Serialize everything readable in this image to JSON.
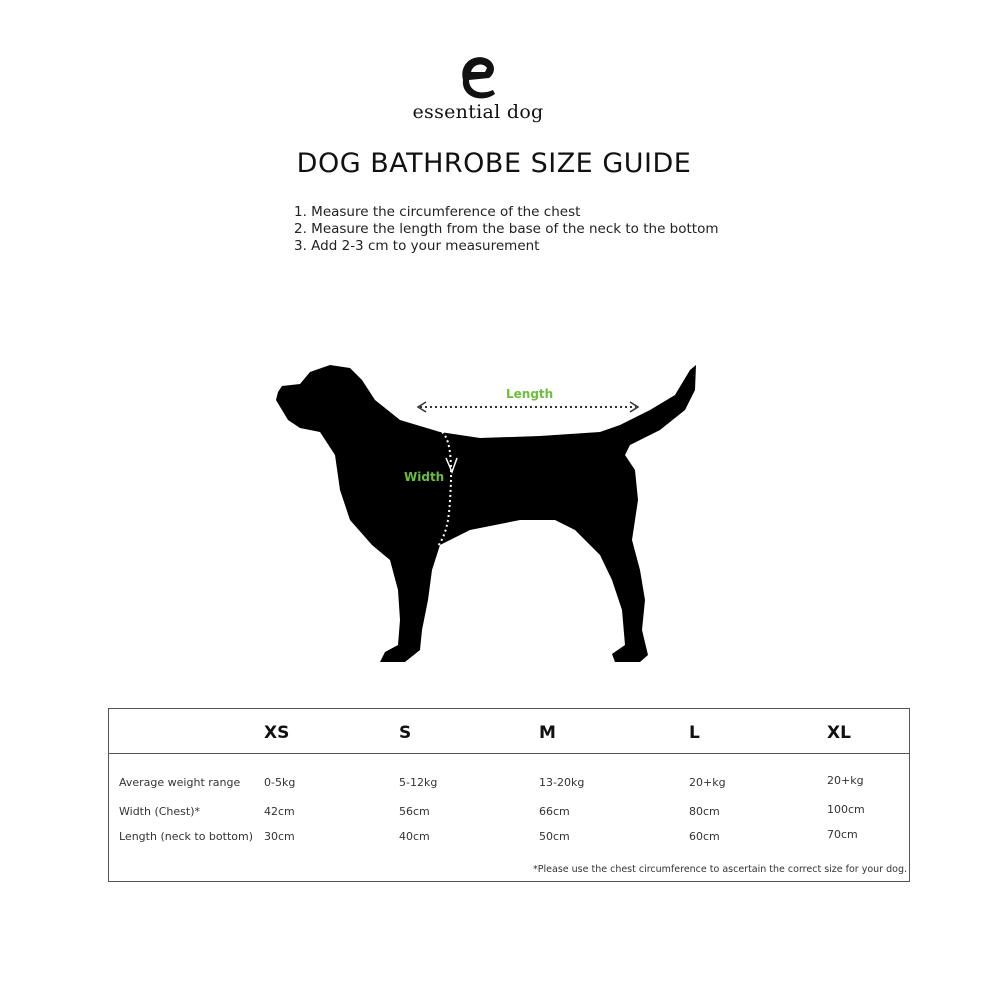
{
  "brand": {
    "name": "essential dog"
  },
  "title": "DOG BATHROBE SIZE GUIDE",
  "steps": [
    "1. Measure the circumference of the chest",
    "2. Measure the length from the base of the neck to the bottom",
    "3. Add 2-3 cm to your measurement"
  ],
  "diagram": {
    "length_label": "Length",
    "width_label": "Width",
    "label_color": "#6cbf3a"
  },
  "table": {
    "sizes": [
      "XS",
      "S",
      "M",
      "L",
      "XL"
    ],
    "rows": [
      {
        "label": "Average weight range",
        "values": [
          "0-5kg",
          "5-12kg",
          "13-20kg",
          "20+kg",
          "20+kg"
        ]
      },
      {
        "label": "Width (Chest)*",
        "values": [
          "42cm",
          "56cm",
          "66cm",
          "80cm",
          "100cm"
        ]
      },
      {
        "label": "Length (neck to bottom)",
        "values": [
          "30cm",
          "40cm",
          "50cm",
          "60cm",
          "70cm"
        ]
      }
    ],
    "footnote": "*Please use the chest circumference to ascertain the correct size for your dog."
  }
}
